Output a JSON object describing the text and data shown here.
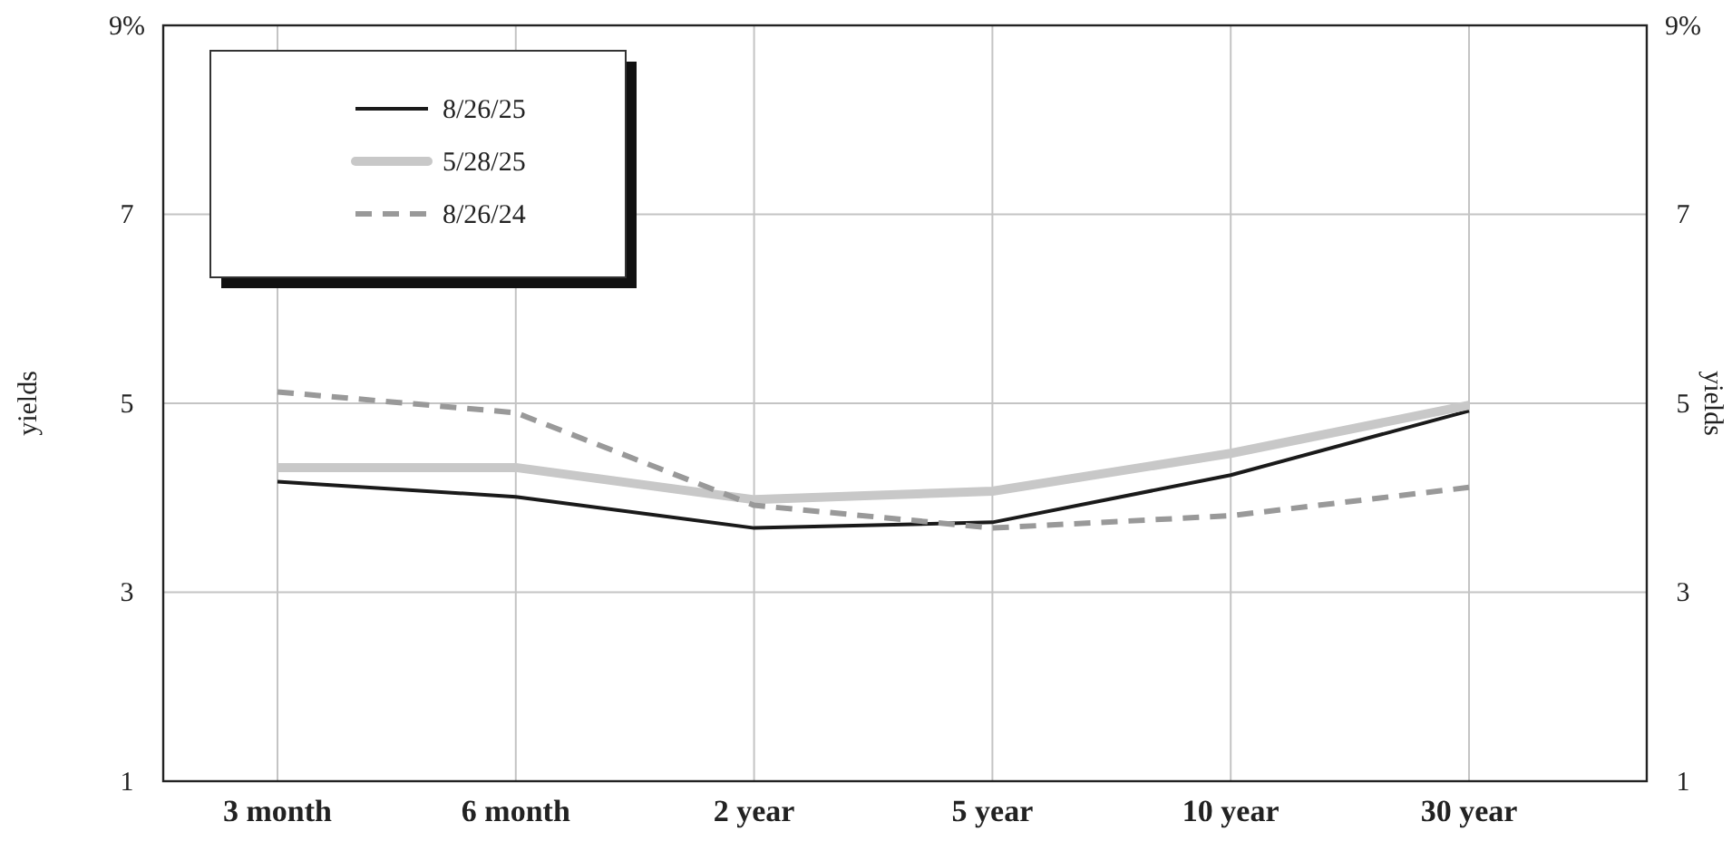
{
  "chart_data": {
    "type": "line",
    "categories": [
      "3 month",
      "6 month",
      "2 year",
      "5 year",
      "10 year",
      "30 year"
    ],
    "series": [
      {
        "name": "8/26/25",
        "color": "#1a1a1a",
        "line_style": "solid",
        "values": [
          4.17,
          4.01,
          3.68,
          3.74,
          4.24,
          4.92
        ]
      },
      {
        "name": "5/28/25",
        "color": "#c8c8c8",
        "line_style": "solid",
        "values": [
          4.32,
          4.32,
          3.98,
          4.07,
          4.47,
          4.98
        ]
      },
      {
        "name": "8/26/24",
        "color": "#999999",
        "line_style": "dashed",
        "values": [
          5.12,
          4.9,
          3.92,
          3.68,
          3.81,
          4.11
        ]
      }
    ],
    "ylim": [
      1,
      9
    ],
    "yticks": [
      1,
      3,
      5,
      7,
      {
        "value": 9,
        "label": "9%"
      }
    ],
    "y2lim": [
      1,
      9
    ],
    "y2ticks": [
      1,
      3,
      5,
      7,
      {
        "value": 9,
        "label": "9%"
      }
    ],
    "ylabel": "yields",
    "y2label": "yields",
    "grid": true,
    "legend": "top left",
    "marker": "none"
  }
}
